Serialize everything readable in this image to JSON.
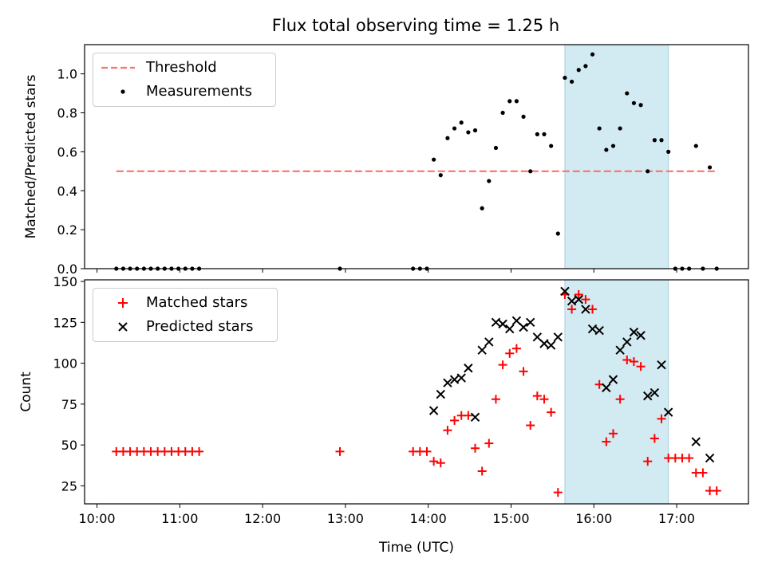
{
  "chart_data": [
    {
      "type": "scatter",
      "title": "Flux total observing time = 1.25 h",
      "xlabel": "",
      "ylabel": "Matched/Predicted stars",
      "xlim": [
        "09:51",
        "17:52"
      ],
      "ylim": [
        0,
        1.15
      ],
      "y_ticks": [
        "0.0",
        "0.2",
        "0.4",
        "0.6",
        "0.8",
        "1.0"
      ],
      "legend_position": "upper left",
      "shaded_interval": {
        "start": "15:39",
        "end": "16:54",
        "color": "#add8e6"
      },
      "series": [
        {
          "name": "Threshold",
          "style": "dashed-line",
          "color": "#ff7070",
          "x": [
            "10:14",
            "17:30"
          ],
          "y": [
            0.5,
            0.5
          ]
        },
        {
          "name": "Measurements",
          "style": "dots",
          "color": "#000000",
          "points": [
            [
              "10:14",
              0
            ],
            [
              "10:19",
              0
            ],
            [
              "10:24",
              0
            ],
            [
              "10:29",
              0
            ],
            [
              "10:34",
              0
            ],
            [
              "10:39",
              0
            ],
            [
              "10:44",
              0
            ],
            [
              "10:49",
              0
            ],
            [
              "10:54",
              0
            ],
            [
              "10:59",
              0
            ],
            [
              "11:04",
              0
            ],
            [
              "11:09",
              0
            ],
            [
              "11:14",
              0
            ],
            [
              "12:56",
              0
            ],
            [
              "13:49",
              0
            ],
            [
              "13:54",
              0
            ],
            [
              "13:59",
              0
            ],
            [
              "14:04",
              0.56
            ],
            [
              "14:09",
              0.48
            ],
            [
              "14:14",
              0.67
            ],
            [
              "14:19",
              0.72
            ],
            [
              "14:24",
              0.75
            ],
            [
              "14:29",
              0.7
            ],
            [
              "14:34",
              0.71
            ],
            [
              "14:39",
              0.31
            ],
            [
              "14:44",
              0.45
            ],
            [
              "14:49",
              0.62
            ],
            [
              "14:54",
              0.8
            ],
            [
              "14:59",
              0.86
            ],
            [
              "15:04",
              0.86
            ],
            [
              "15:09",
              0.78
            ],
            [
              "15:14",
              0.5
            ],
            [
              "15:19",
              0.69
            ],
            [
              "15:24",
              0.69
            ],
            [
              "15:29",
              0.63
            ],
            [
              "15:34",
              0.18
            ],
            [
              "15:39",
              0.98
            ],
            [
              "15:44",
              0.96
            ],
            [
              "15:49",
              1.02
            ],
            [
              "15:54",
              1.04
            ],
            [
              "15:59",
              1.1
            ],
            [
              "16:04",
              0.72
            ],
            [
              "16:09",
              0.61
            ],
            [
              "16:14",
              0.63
            ],
            [
              "16:19",
              0.72
            ],
            [
              "16:24",
              0.9
            ],
            [
              "16:29",
              0.85
            ],
            [
              "16:34",
              0.84
            ],
            [
              "16:39",
              0.5
            ],
            [
              "16:44",
              0.66
            ],
            [
              "16:49",
              0.66
            ],
            [
              "16:54",
              0.6
            ],
            [
              "16:59",
              0
            ],
            [
              "17:04",
              0
            ],
            [
              "17:09",
              0
            ],
            [
              "17:14",
              0.63
            ],
            [
              "17:19",
              0
            ],
            [
              "17:24",
              0.52
            ],
            [
              "17:29",
              0
            ]
          ]
        }
      ]
    },
    {
      "type": "scatter",
      "xlabel": "Time (UTC)",
      "ylabel": "Count",
      "xlim": [
        "09:51",
        "17:52"
      ],
      "ylim": [
        14,
        151
      ],
      "x_ticks": [
        "10:00",
        "11:00",
        "12:00",
        "13:00",
        "14:00",
        "15:00",
        "16:00",
        "17:00"
      ],
      "y_ticks": [
        "25",
        "50",
        "75",
        "100",
        "125",
        "150"
      ],
      "legend_position": "upper left",
      "shaded_interval": {
        "start": "15:39",
        "end": "16:54",
        "color": "#add8e6"
      },
      "series": [
        {
          "name": "Matched stars",
          "style": "plus",
          "color": "#ff0000",
          "points": [
            [
              "10:14",
              46
            ],
            [
              "10:19",
              46
            ],
            [
              "10:24",
              46
            ],
            [
              "10:29",
              46
            ],
            [
              "10:34",
              46
            ],
            [
              "10:39",
              46
            ],
            [
              "10:44",
              46
            ],
            [
              "10:49",
              46
            ],
            [
              "10:54",
              46
            ],
            [
              "10:59",
              46
            ],
            [
              "11:04",
              46
            ],
            [
              "11:09",
              46
            ],
            [
              "11:14",
              46
            ],
            [
              "12:56",
              46
            ],
            [
              "13:49",
              46
            ],
            [
              "13:54",
              46
            ],
            [
              "13:59",
              46
            ],
            [
              "14:04",
              40
            ],
            [
              "14:09",
              39
            ],
            [
              "14:14",
              59
            ],
            [
              "14:19",
              65
            ],
            [
              "14:24",
              68
            ],
            [
              "14:29",
              68
            ],
            [
              "14:34",
              48
            ],
            [
              "14:39",
              34
            ],
            [
              "14:44",
              51
            ],
            [
              "14:49",
              78
            ],
            [
              "14:54",
              99
            ],
            [
              "14:59",
              106
            ],
            [
              "15:04",
              109
            ],
            [
              "15:09",
              95
            ],
            [
              "15:14",
              62
            ],
            [
              "15:19",
              80
            ],
            [
              "15:24",
              78
            ],
            [
              "15:29",
              70
            ],
            [
              "15:34",
              21
            ],
            [
              "15:39",
              142
            ],
            [
              "15:44",
              133
            ],
            [
              "15:49",
              142
            ],
            [
              "15:54",
              139
            ],
            [
              "15:59",
              133
            ],
            [
              "16:04",
              87
            ],
            [
              "16:09",
              52
            ],
            [
              "16:14",
              57
            ],
            [
              "16:19",
              78
            ],
            [
              "16:24",
              102
            ],
            [
              "16:29",
              101
            ],
            [
              "16:34",
              98
            ],
            [
              "16:39",
              40
            ],
            [
              "16:44",
              54
            ],
            [
              "16:49",
              66
            ],
            [
              "16:54",
              42
            ],
            [
              "16:59",
              42
            ],
            [
              "17:04",
              42
            ],
            [
              "17:09",
              42
            ],
            [
              "17:14",
              33
            ],
            [
              "17:19",
              33
            ],
            [
              "17:24",
              22
            ],
            [
              "17:29",
              22
            ]
          ]
        },
        {
          "name": "Predicted stars",
          "style": "x",
          "color": "#000000",
          "points": [
            [
              "14:04",
              71
            ],
            [
              "14:09",
              81
            ],
            [
              "14:14",
              88
            ],
            [
              "14:19",
              90
            ],
            [
              "14:24",
              91
            ],
            [
              "14:29",
              97
            ],
            [
              "14:34",
              67
            ],
            [
              "14:39",
              108
            ],
            [
              "14:44",
              113
            ],
            [
              "14:49",
              125
            ],
            [
              "14:54",
              124
            ],
            [
              "14:59",
              121
            ],
            [
              "15:04",
              126
            ],
            [
              "15:09",
              122
            ],
            [
              "15:14",
              125
            ],
            [
              "15:19",
              116
            ],
            [
              "15:24",
              112
            ],
            [
              "15:29",
              111
            ],
            [
              "15:34",
              116
            ],
            [
              "15:39",
              144
            ],
            [
              "15:44",
              138
            ],
            [
              "15:49",
              139
            ],
            [
              "15:54",
              133
            ],
            [
              "15:59",
              121
            ],
            [
              "16:04",
              120
            ],
            [
              "16:09",
              85
            ],
            [
              "16:14",
              90
            ],
            [
              "16:19",
              108
            ],
            [
              "16:24",
              113
            ],
            [
              "16:29",
              119
            ],
            [
              "16:34",
              117
            ],
            [
              "16:39",
              80
            ],
            [
              "16:44",
              82
            ],
            [
              "16:49",
              99
            ],
            [
              "16:54",
              70
            ],
            [
              "17:14",
              52
            ],
            [
              "17:24",
              42
            ]
          ]
        }
      ]
    }
  ]
}
